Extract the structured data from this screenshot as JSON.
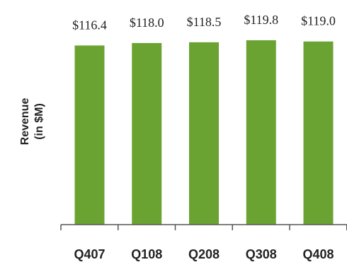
{
  "chart_data": {
    "type": "bar",
    "categories": [
      "Q407",
      "Q108",
      "Q208",
      "Q308",
      "Q408"
    ],
    "values": [
      116.4,
      118.0,
      118.5,
      119.8,
      119.0
    ],
    "data_labels": [
      "$116.4",
      "$118.0",
      "$118.5",
      "$119.8",
      "$119.0"
    ],
    "title": "",
    "xlabel": "",
    "ylabel": [
      "Revenue",
      "(in $M)"
    ],
    "ylim": [
      0,
      119.8
    ],
    "grid": false,
    "legend": "none",
    "bar_color": "#6aa332",
    "axis_color": "#555555"
  }
}
